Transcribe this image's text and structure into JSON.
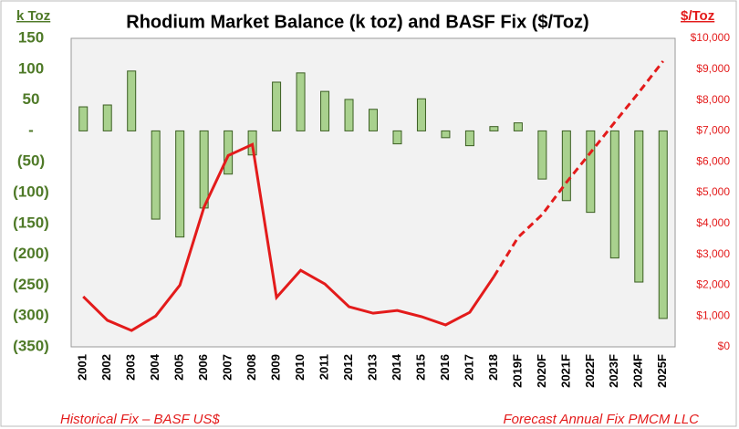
{
  "chart_data": {
    "type": "bar_line",
    "title": "Rhodium Market Balance (k toz) and BASF Fix ($/Toz)",
    "y_label": "k Toz",
    "y2_label": "$/Toz",
    "categories": [
      "2001",
      "2002",
      "2003",
      "2004",
      "2005",
      "2006",
      "2007",
      "2008",
      "2009",
      "2010",
      "2011",
      "2012",
      "2013",
      "2014",
      "2015",
      "2016",
      "2017",
      "2018",
      "2019F",
      "2020F",
      "2021F",
      "2022F",
      "2023F",
      "2024F",
      "2025F"
    ],
    "series": [
      {
        "name": null,
        "type": "bar",
        "axis": "y",
        "color": "#a9d18e",
        "edge": "#3b5e22",
        "values": [
          39,
          42,
          97,
          -143,
          -172,
          -125,
          -70,
          -39,
          79,
          94,
          64,
          51,
          35,
          -21,
          52,
          -11,
          -24,
          7,
          13,
          -78,
          -113,
          -132,
          -206,
          -245,
          -304
        ]
      },
      {
        "name": "Historical Fix – BASF US$",
        "type": "line",
        "axis": "y2",
        "color": "#e31b1b",
        "dashed": false,
        "values": [
          1630,
          860,
          530,
          1000,
          2000,
          4530,
          6200,
          6560,
          1600,
          2480,
          2040,
          1300,
          1090,
          1180,
          980,
          710,
          1120,
          2280,
          null,
          null,
          null,
          null,
          null,
          null,
          null
        ]
      },
      {
        "name": "Forecast Annual Fix PMCM LLC",
        "type": "line",
        "axis": "y2",
        "color": "#e31b1b",
        "dashed": true,
        "values": [
          null,
          null,
          null,
          null,
          null,
          null,
          null,
          null,
          null,
          null,
          null,
          null,
          null,
          null,
          null,
          null,
          null,
          2280,
          3550,
          4290,
          5330,
          6300,
          7280,
          8250,
          9260
        ]
      }
    ],
    "ylim": [
      -350,
      150
    ],
    "yticks": [
      {
        "value": 150,
        "label": "150"
      },
      {
        "value": 100,
        "label": "100"
      },
      {
        "value": 50,
        "label": "50"
      },
      {
        "value": 0,
        "label": "-"
      },
      {
        "value": -50,
        "label": "(50)"
      },
      {
        "value": -100,
        "label": "(100)"
      },
      {
        "value": -150,
        "label": "(150)"
      },
      {
        "value": -200,
        "label": "(200)"
      },
      {
        "value": -250,
        "label": "(250)"
      },
      {
        "value": -300,
        "label": "(300)"
      },
      {
        "value": -350,
        "label": "(350)"
      }
    ],
    "y2lim": [
      0,
      10000
    ],
    "y2ticks": [
      {
        "value": 0,
        "label": "$0"
      },
      {
        "value": 1000,
        "label": "$1,000"
      },
      {
        "value": 2000,
        "label": "$2,000"
      },
      {
        "value": 3000,
        "label": "$3,000"
      },
      {
        "value": 4000,
        "label": "$4,000"
      },
      {
        "value": 5000,
        "label": "$5,000"
      },
      {
        "value": 6000,
        "label": "$6,000"
      },
      {
        "value": 7000,
        "label": "$7,000"
      },
      {
        "value": 8000,
        "label": "$8,000"
      },
      {
        "value": 9000,
        "label": "$9,000"
      },
      {
        "value": 10000,
        "label": "$10,000"
      }
    ],
    "ycolor": "#4f7a28",
    "y2color": "#e31b1b"
  }
}
